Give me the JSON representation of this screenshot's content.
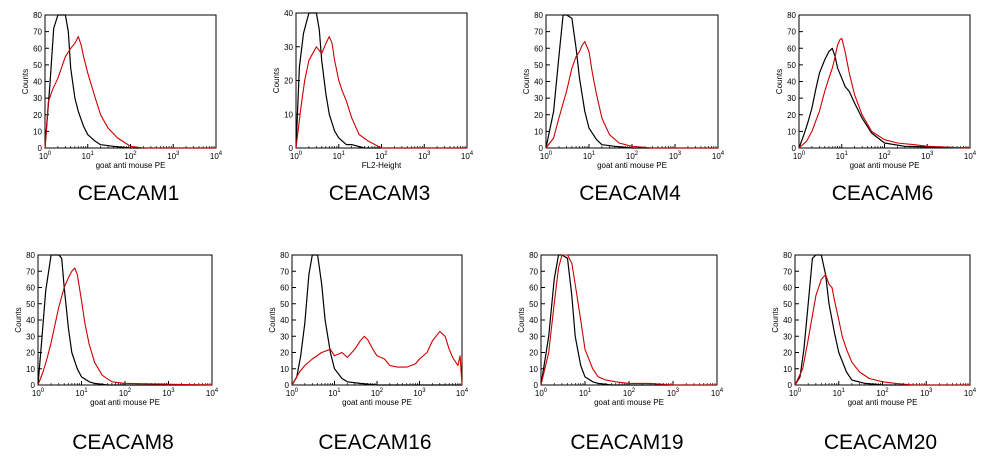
{
  "chart_data": [
    {
      "type": "line",
      "title": "CEACAM1",
      "xlabel": "goat anti mouse PE",
      "ylabel": "Counts",
      "x_scale": "log",
      "xlim": [
        1,
        10000
      ],
      "ylim": [
        0,
        80
      ],
      "x_ticks": [
        "10^0",
        "10^1",
        "10^2",
        "10^3",
        "10^4"
      ],
      "y_ticks": [
        "0",
        "10",
        "20",
        "30",
        "40",
        "50",
        "60",
        "70",
        "80"
      ],
      "series": [
        {
          "color": "#000000",
          "x": [
            1,
            1.3,
            1.6,
            2,
            2.5,
            3,
            3.5,
            4,
            5,
            6,
            8,
            10,
            15,
            20,
            40,
            100,
            10000
          ],
          "y": [
            0,
            38,
            72,
            80,
            80,
            80,
            70,
            48,
            30,
            22,
            13,
            8,
            4,
            2,
            1,
            0,
            0
          ]
        },
        {
          "color": "#cc0000",
          "x": [
            1,
            1.2,
            1.5,
            2,
            3,
            4,
            5,
            6,
            7,
            8,
            10,
            15,
            20,
            30,
            50,
            100,
            200,
            1000,
            10000
          ],
          "y": [
            0,
            28,
            35,
            42,
            55,
            60,
            63,
            67,
            62,
            55,
            45,
            30,
            20,
            12,
            6,
            1,
            0,
            0,
            0
          ]
        }
      ]
    },
    {
      "type": "line",
      "title": "CEACAM3",
      "xlabel": "FL2-Height",
      "ylabel": "Counts",
      "x_scale": "log",
      "xlim": [
        1,
        10000
      ],
      "ylim": [
        0,
        40
      ],
      "x_ticks": [
        "10^0",
        "10^1",
        "10^2",
        "10^3",
        "10^4"
      ],
      "y_ticks": [
        "0",
        "10",
        "20",
        "30",
        "40"
      ],
      "series": [
        {
          "color": "#000000",
          "x": [
            1,
            1.2,
            1.5,
            2,
            2.5,
            3,
            3.5,
            4,
            5,
            6,
            8,
            10,
            15,
            20,
            40,
            100,
            10000
          ],
          "y": [
            0,
            24,
            34,
            40,
            40,
            40,
            35,
            26,
            16,
            10,
            5,
            3,
            1,
            1,
            0,
            0,
            0
          ]
        },
        {
          "color": "#cc0000",
          "x": [
            1,
            1.3,
            1.6,
            2,
            3,
            4,
            5,
            6,
            7,
            8,
            10,
            12,
            15,
            20,
            30,
            50,
            100,
            10000
          ],
          "y": [
            0,
            12,
            20,
            26,
            30,
            28,
            31,
            33,
            31,
            26,
            20,
            17,
            14,
            9,
            4,
            2,
            0,
            0
          ]
        }
      ]
    },
    {
      "type": "line",
      "title": "CEACAM4",
      "xlabel": "goat anti mouse PE",
      "ylabel": "Counts",
      "x_scale": "log",
      "xlim": [
        1,
        10000
      ],
      "ylim": [
        0,
        80
      ],
      "x_ticks": [
        "10^0",
        "10^1",
        "10^2",
        "10^3",
        "10^4"
      ],
      "y_ticks": [
        "0",
        "10",
        "20",
        "30",
        "40",
        "50",
        "60",
        "70",
        "80"
      ],
      "series": [
        {
          "color": "#000000",
          "x": [
            1,
            1.5,
            2,
            2.5,
            3,
            4,
            5,
            6,
            8,
            10,
            15,
            20,
            40,
            100,
            10000
          ],
          "y": [
            0,
            22,
            55,
            80,
            80,
            78,
            60,
            42,
            22,
            12,
            5,
            2,
            1,
            0,
            0
          ]
        },
        {
          "color": "#cc0000",
          "x": [
            1,
            1.5,
            2,
            3,
            4,
            5,
            6,
            7,
            8,
            10,
            12,
            15,
            20,
            30,
            50,
            100,
            300,
            10000
          ],
          "y": [
            0,
            6,
            18,
            34,
            48,
            55,
            58,
            62,
            64,
            58,
            45,
            32,
            18,
            8,
            3,
            1,
            0,
            0
          ]
        }
      ]
    },
    {
      "type": "line",
      "title": "CEACAM6",
      "xlabel": "goat anti mouse PE",
      "ylabel": "Counts",
      "x_scale": "log",
      "xlim": [
        1,
        10000
      ],
      "ylim": [
        0,
        80
      ],
      "x_ticks": [
        "10^0",
        "10^1",
        "10^2",
        "10^3",
        "10^4"
      ],
      "y_ticks": [
        "0",
        "10",
        "20",
        "30",
        "40",
        "50",
        "60",
        "70",
        "80"
      ],
      "series": [
        {
          "color": "#000000",
          "x": [
            1,
            1.3,
            1.6,
            2,
            2.5,
            3,
            4,
            5,
            6,
            7,
            8,
            10,
            12,
            15,
            20,
            30,
            50,
            100,
            300,
            10000
          ],
          "y": [
            0,
            8,
            15,
            24,
            36,
            45,
            53,
            58,
            60,
            55,
            48,
            42,
            37,
            34,
            27,
            18,
            9,
            3,
            1,
            0
          ]
        },
        {
          "color": "#cc0000",
          "x": [
            1,
            1.5,
            2,
            3,
            4,
            5,
            6,
            7,
            8,
            9,
            10,
            12,
            15,
            20,
            30,
            50,
            100,
            200,
            500,
            1000,
            10000
          ],
          "y": [
            0,
            4,
            10,
            22,
            34,
            42,
            48,
            55,
            62,
            65,
            66,
            58,
            45,
            32,
            20,
            10,
            5,
            3,
            2,
            1,
            0
          ]
        }
      ]
    },
    {
      "type": "line",
      "title": "CEACAM8",
      "xlabel": "goat anti mouse PE",
      "ylabel": "Counts",
      "x_scale": "log",
      "xlim": [
        1,
        10000
      ],
      "ylim": [
        0,
        80
      ],
      "x_ticks": [
        "10^0",
        "10^1",
        "10^2",
        "10^3",
        "10^4"
      ],
      "y_ticks": [
        "0",
        "10",
        "20",
        "30",
        "40",
        "50",
        "60",
        "70",
        "80"
      ],
      "series": [
        {
          "color": "#000000",
          "x": [
            1,
            1.2,
            1.5,
            2,
            2.5,
            3,
            3.5,
            4,
            5,
            6,
            8,
            10,
            15,
            20,
            40,
            100,
            10000
          ],
          "y": [
            0,
            25,
            58,
            80,
            80,
            80,
            78,
            60,
            35,
            20,
            10,
            5,
            2,
            1,
            0,
            0,
            0
          ]
        },
        {
          "color": "#cc0000",
          "x": [
            1,
            1.3,
            1.6,
            2,
            2.5,
            3,
            4,
            5,
            6,
            7,
            8,
            10,
            12,
            15,
            20,
            30,
            50,
            100,
            10000
          ],
          "y": [
            0,
            8,
            16,
            26,
            38,
            48,
            60,
            66,
            70,
            72,
            68,
            52,
            38,
            25,
            14,
            6,
            2,
            1,
            0
          ]
        }
      ]
    },
    {
      "type": "line",
      "title": "CEACAM16",
      "xlabel": "goat anti mouse PE",
      "ylabel": "Counts",
      "x_scale": "log",
      "xlim": [
        1,
        10000
      ],
      "ylim": [
        0,
        80
      ],
      "x_ticks": [
        "10^0",
        "10^1",
        "10^2",
        "10^3",
        "10^4"
      ],
      "y_ticks": [
        "0",
        "10",
        "20",
        "30",
        "40",
        "50",
        "60",
        "70",
        "80"
      ],
      "series": [
        {
          "color": "#000000",
          "x": [
            1,
            1.3,
            1.6,
            2,
            2.5,
            3,
            3.5,
            4,
            5,
            6,
            8,
            10,
            15,
            20,
            40,
            100,
            10000
          ],
          "y": [
            0,
            5,
            18,
            38,
            68,
            80,
            80,
            80,
            62,
            40,
            20,
            10,
            4,
            2,
            1,
            0,
            0
          ]
        },
        {
          "color": "#cc0000",
          "x": [
            1,
            1.5,
            2,
            3,
            5,
            8,
            10,
            15,
            20,
            30,
            40,
            50,
            60,
            80,
            100,
            150,
            200,
            300,
            500,
            800,
            1000,
            1500,
            2000,
            3000,
            4000,
            5000,
            6000,
            8000,
            9000,
            10000
          ],
          "y": [
            0,
            8,
            12,
            16,
            20,
            22,
            18,
            20,
            17,
            22,
            27,
            30,
            28,
            22,
            18,
            16,
            12,
            11,
            11,
            13,
            16,
            20,
            27,
            33,
            30,
            22,
            17,
            12,
            18,
            0
          ]
        }
      ]
    },
    {
      "type": "line",
      "title": "CEACAM19",
      "xlabel": "goat anti mouse PE",
      "ylabel": "Counts",
      "x_scale": "log",
      "xlim": [
        1,
        10000
      ],
      "ylim": [
        0,
        80
      ],
      "x_ticks": [
        "10^0",
        "10^1",
        "10^2",
        "10^3",
        "10^4"
      ],
      "y_ticks": [
        "0",
        "10",
        "20",
        "30",
        "40",
        "50",
        "60",
        "70",
        "80"
      ],
      "series": [
        {
          "color": "#000000",
          "x": [
            1,
            1.5,
            2,
            2.5,
            3,
            4,
            5,
            6,
            8,
            10,
            15,
            20,
            40,
            100,
            10000
          ],
          "y": [
            0,
            30,
            65,
            80,
            80,
            78,
            55,
            30,
            12,
            5,
            2,
            1,
            0,
            0,
            0
          ]
        },
        {
          "color": "#cc0000",
          "x": [
            1,
            1.5,
            2,
            2.5,
            3,
            4,
            5,
            6,
            8,
            10,
            15,
            20,
            30,
            50,
            100,
            300,
            1000,
            10000
          ],
          "y": [
            0,
            20,
            50,
            72,
            80,
            80,
            75,
            62,
            40,
            22,
            10,
            5,
            3,
            2,
            1,
            1,
            0,
            0
          ]
        }
      ]
    },
    {
      "type": "line",
      "title": "CEACAM20",
      "xlabel": "goat anti mouse PE",
      "ylabel": "Counts",
      "x_scale": "log",
      "xlim": [
        1,
        10000
      ],
      "ylim": [
        0,
        80
      ],
      "x_ticks": [
        "10^0",
        "10^1",
        "10^2",
        "10^3",
        "10^4"
      ],
      "y_ticks": [
        "0",
        "10",
        "20",
        "30",
        "40",
        "50",
        "60",
        "70",
        "80"
      ],
      "series": [
        {
          "color": "#000000",
          "x": [
            1,
            1.3,
            1.6,
            2,
            2.5,
            3,
            3.5,
            4,
            5,
            6,
            8,
            10,
            15,
            20,
            40,
            100,
            10000
          ],
          "y": [
            0,
            5,
            22,
            50,
            78,
            80,
            80,
            80,
            68,
            50,
            32,
            20,
            8,
            3,
            1,
            0,
            0
          ]
        },
        {
          "color": "#cc0000",
          "x": [
            1,
            1.5,
            2,
            3,
            4,
            5,
            6,
            7,
            8,
            10,
            12,
            15,
            20,
            30,
            50,
            100,
            200,
            500,
            10000
          ],
          "y": [
            0,
            10,
            28,
            55,
            65,
            68,
            62,
            60,
            52,
            40,
            30,
            22,
            14,
            8,
            4,
            2,
            1,
            0,
            0
          ]
        }
      ]
    }
  ]
}
